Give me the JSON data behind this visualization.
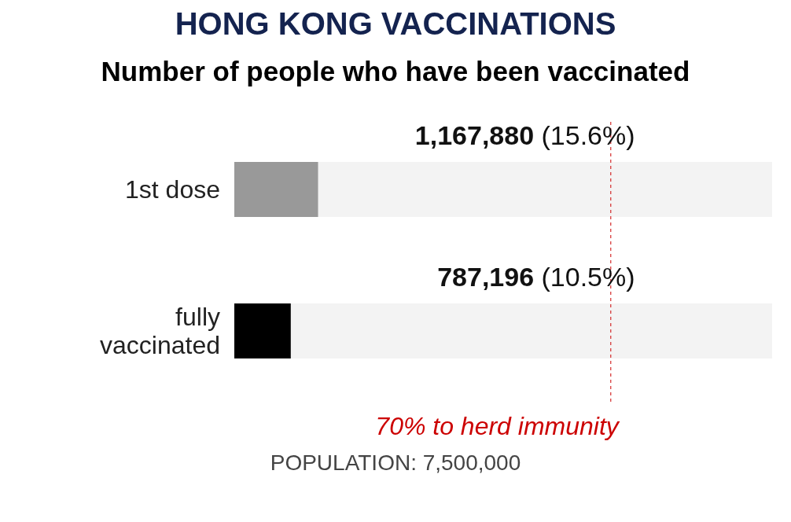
{
  "chart_data": {
    "type": "bar",
    "orientation": "horizontal",
    "title": "HONG KONG VACCINATIONS",
    "subtitle": "Number of people who have been vaccinated",
    "categories": [
      "1st dose",
      "fully vaccinated"
    ],
    "values": [
      1167880,
      787196
    ],
    "colors": [
      "#999999",
      "#000000"
    ],
    "value_labels": [
      "1,167,880 (15.6%)",
      "787,196 (10.5%)"
    ],
    "xlim": [
      0,
      7500000
    ],
    "tick_labels": "y",
    "grid": false,
    "legend": false,
    "ref_lines": [
      {
        "axis": "x",
        "value": 5250000,
        "label": "70% to herd immunity",
        "color": "#cc0000",
        "line_style": "dashed"
      }
    ],
    "annotations": [
      "POPULATION: 7,500,000"
    ]
  }
}
